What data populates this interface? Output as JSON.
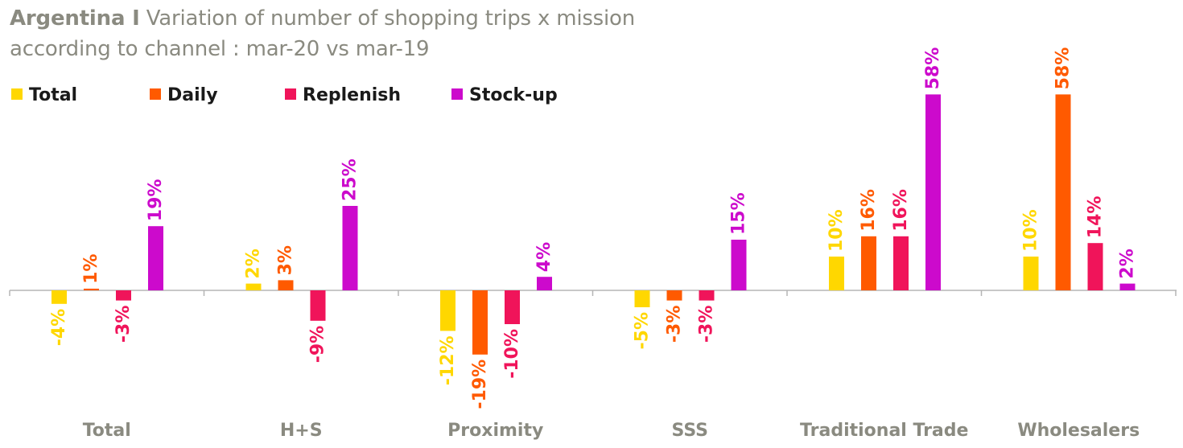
{
  "chart_data": {
    "type": "bar",
    "title_bold": "Argentina I",
    "title": "Variation of number of shopping trips x mission",
    "subtitle": "according to channel : mar-20 vs mar-19",
    "categories": [
      "Total",
      "H+S",
      "Proximity",
      "SSS",
      "Traditional Trade",
      "Wholesalers"
    ],
    "series": [
      {
        "name": "Total",
        "color": "#FFD700",
        "values": [
          -4,
          2,
          -12,
          -5,
          10,
          10
        ],
        "labels": [
          "-4%",
          "2%",
          "-12%",
          "-5%",
          "10%",
          "10%"
        ]
      },
      {
        "name": "Daily",
        "color": "#FF5A00",
        "values": [
          0.5,
          3,
          -19,
          -3,
          16,
          58
        ],
        "labels": [
          "1%",
          "3%",
          "-19%",
          "-3%",
          "16%",
          "58%"
        ]
      },
      {
        "name": "Replenish",
        "color": "#F0145A",
        "values": [
          -3,
          -9,
          -10,
          -3,
          16,
          14
        ],
        "labels": [
          "-3%",
          "-9%",
          "-10%",
          "-3%",
          "16%",
          "14%"
        ]
      },
      {
        "name": "Stock-up",
        "color": "#CC0ACC",
        "values": [
          19,
          25,
          4,
          15,
          58,
          2
        ],
        "labels": [
          "19%",
          "25%",
          "4%",
          "15%",
          "58%",
          "2%"
        ]
      }
    ],
    "ylim": [
      -20,
      60
    ],
    "grid": false,
    "legend_position": "top-left"
  }
}
